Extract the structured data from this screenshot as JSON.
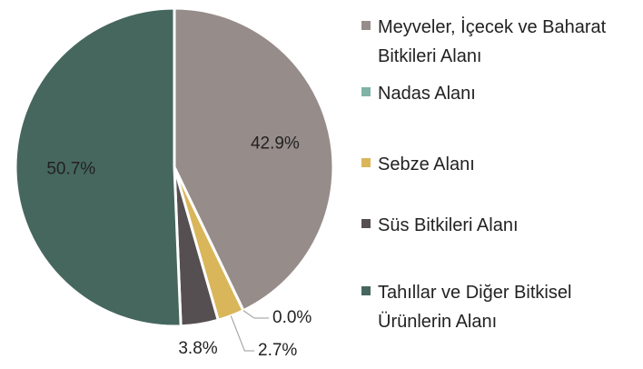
{
  "chart_data": {
    "type": "pie",
    "categories": [
      "Meyveler, İçecek ve Baharat Bitkileri Alanı",
      "Nadas Alanı",
      "Sebze Alanı",
      "Süs Bitkileri Alanı",
      "Tahıllar ve Diğer Bitkisel Ürünlerin Alanı"
    ],
    "values": [
      42.9,
      0.0,
      2.7,
      3.8,
      50.7
    ],
    "value_labels": [
      "42.9%",
      "0.0%",
      "2.7%",
      "3.8%",
      "50.7%"
    ],
    "colors": [
      "#968c8a",
      "#7fb3a6",
      "#d9b65a",
      "#564f52",
      "#46675e"
    ],
    "legend": "right"
  }
}
